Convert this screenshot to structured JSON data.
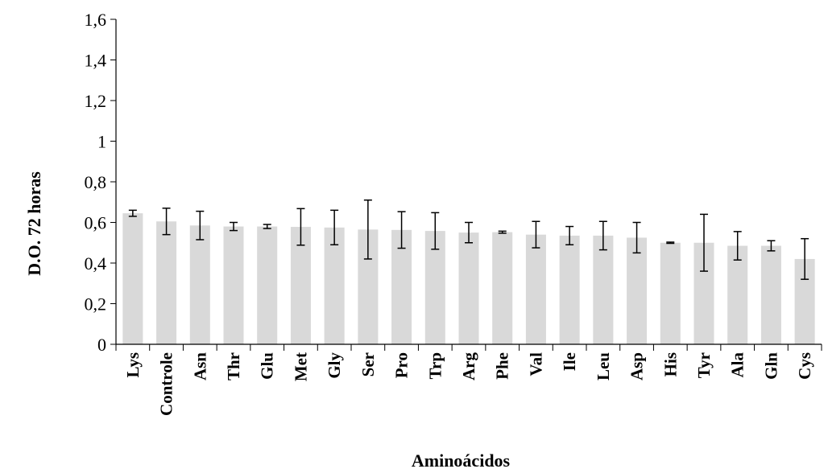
{
  "chart_data": {
    "type": "bar",
    "xlabel": "Aminoácidos",
    "ylabel": "D.O. 72 horas",
    "ylim": [
      0,
      1.6
    ],
    "yticks": [
      {
        "value": 0,
        "label": "0"
      },
      {
        "value": 0.2,
        "label": "0,2"
      },
      {
        "value": 0.4,
        "label": "0,4"
      },
      {
        "value": 0.6,
        "label": "0,6"
      },
      {
        "value": 0.8,
        "label": "0,8"
      },
      {
        "value": 1.0,
        "label": "1"
      },
      {
        "value": 1.2,
        "label": "1,2"
      },
      {
        "value": 1.4,
        "label": "1,4"
      },
      {
        "value": 1.6,
        "label": "1,6"
      }
    ],
    "grid": false,
    "bar_color": "#d9d9d9",
    "error_color": "#000000",
    "categories": [
      "Lys",
      "Controle",
      "Asn",
      "Thr",
      "Glu",
      "Met",
      "Gly",
      "Ser",
      "Pro",
      "Trp",
      "Arg",
      "Phe",
      "Val",
      "Ile",
      "Leu",
      "Asp",
      "His",
      "Tyr",
      "Ala",
      "Gln",
      "Cys"
    ],
    "values": [
      0.645,
      0.605,
      0.585,
      0.58,
      0.58,
      0.578,
      0.575,
      0.565,
      0.563,
      0.558,
      0.55,
      0.552,
      0.54,
      0.535,
      0.535,
      0.525,
      0.5,
      0.5,
      0.485,
      0.485,
      0.42
    ],
    "errors": [
      0.015,
      0.065,
      0.07,
      0.02,
      0.01,
      0.09,
      0.085,
      0.145,
      0.09,
      0.09,
      0.05,
      0.005,
      0.065,
      0.045,
      0.07,
      0.075,
      0.003,
      0.14,
      0.07,
      0.025,
      0.1
    ]
  }
}
